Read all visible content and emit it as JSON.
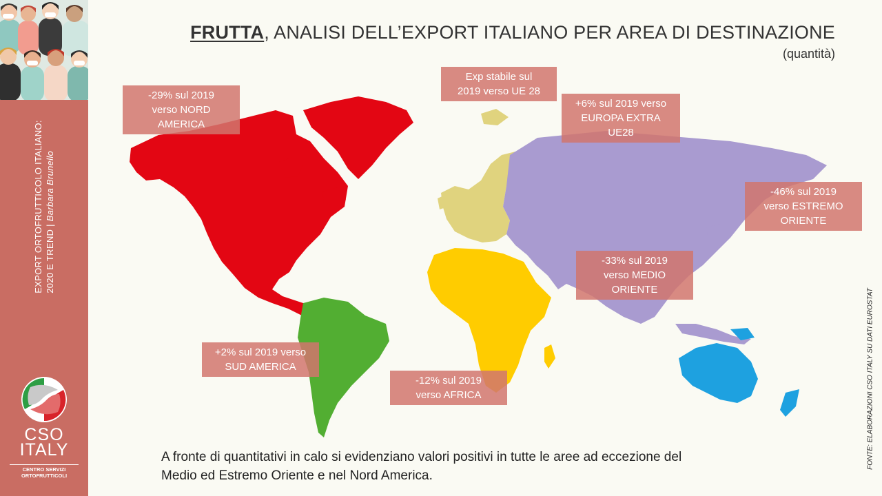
{
  "title": {
    "highlight": "FRUTTA",
    "rest": ", ANALISI DELL’EXPORT ITALIANO PER AREA DI DESTINAZIONE",
    "subtitle": "(quantità)"
  },
  "sidebar": {
    "line1": "EXPORT ORTOFRUTTICOLO ITALIANO:",
    "line2": "2020 E TREND",
    "separator": "|",
    "author": "Barbara Brunello",
    "logo_name_1": "CSO",
    "logo_name_2": "ITALY",
    "logo_sub_1": "CENTRO SERVIZI",
    "logo_sub_2": "ORTOFRUTTICOLI"
  },
  "regions": [
    {
      "name": "Nord America",
      "color": "#e30613"
    },
    {
      "name": "Sud America",
      "color": "#52ae32"
    },
    {
      "name": "UE 28",
      "color": "#e0d37e"
    },
    {
      "name": "Africa",
      "color": "#ffcc00"
    },
    {
      "name": "Europa extra UE28 / Asia",
      "color": "#a99bd0"
    },
    {
      "name": "Oceania",
      "color": "#1ea1e0"
    }
  ],
  "labels": {
    "nord_america": [
      "-29% sul 2019",
      "verso NORD",
      "AMERICA"
    ],
    "ue28": [
      "Exp stabile sul",
      "2019 verso UE 28"
    ],
    "extra_ue": [
      "+6% sul 2019 verso",
      "EUROPA EXTRA",
      "UE28"
    ],
    "estremo_oriente": [
      "-46% sul 2019",
      "verso ESTREMO",
      "ORIENTE"
    ],
    "medio_oriente": [
      "-33% sul 2019",
      "verso MEDIO",
      "ORIENTE"
    ],
    "sud_america": [
      "+2% sul 2019 verso",
      "SUD AMERICA"
    ],
    "africa": [
      "-12% sul 2019",
      "verso AFRICA"
    ]
  },
  "caption": {
    "line1": "A fronte di quantitativi in calo si evidenziano valori positivi in tutte le aree ad eccezione del",
    "line2": "Medio ed Estremo Oriente e nel Nord America."
  },
  "source": "FONTE: ELABORAZIONI CSO ITALY SU DATI EUROSTAT"
}
